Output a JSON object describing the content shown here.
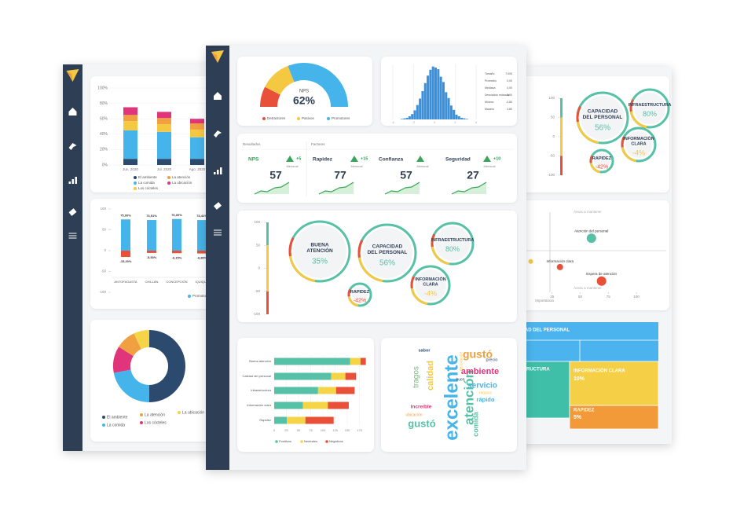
{
  "left_dashboard": {
    "stacked_chart": {
      "type": "bar",
      "categories": [
        "Jun. 2020",
        "Jul. 2020",
        "Ago. 2020"
      ],
      "series": [
        {
          "name": "El ambiente",
          "color": "#2c4a6e",
          "values": [
            8,
            8,
            8
          ]
        },
        {
          "name": "La comida",
          "color": "#45b4ea",
          "values": [
            37,
            35,
            28
          ]
        },
        {
          "name": "Los cócteles",
          "color": "#f5c842",
          "values": [
            12,
            10,
            10
          ]
        },
        {
          "name": "La atención",
          "color": "#f0a040",
          "values": [
            8,
            8,
            8
          ]
        },
        {
          "name": "La ubicación",
          "color": "#e0357a",
          "values": [
            10,
            8,
            6
          ]
        }
      ],
      "ylim": [
        0,
        100
      ],
      "yticks": [
        {
          "value": 0,
          "label": "0%"
        },
        {
          "value": 20,
          "label": "20%"
        },
        {
          "value": 40,
          "label": "40%"
        },
        {
          "value": 60,
          "label": "60%"
        },
        {
          "value": 80,
          "label": "80%"
        },
        {
          "value": 100,
          "label": "100%"
        }
      ]
    },
    "diverging_chart": {
      "type": "bar",
      "categories": [
        "ANTOFAGASTA",
        "CHILLÁN",
        "CONCEPCIÓN",
        "IQUIQUE"
      ],
      "series": [
        {
          "name": "Promotores",
          "color": "#45b4ea",
          "values": [
            75,
            73.51,
            76,
            73.41
          ],
          "value_labels": [
            "75,00%",
            "73,51%",
            "76,00%",
            "73,41%"
          ]
        },
        {
          "color": "#e8503a",
          "values": [
            -15.2,
            -5.53,
            -6.15,
            -6.8
          ],
          "value_labels": [
            "-15,20%",
            "-5,53%",
            "-6,15%",
            "-6,80%"
          ]
        }
      ],
      "ylim": [
        -100,
        100
      ],
      "yticks": [
        100,
        50,
        0,
        -50,
        -100
      ]
    },
    "donut_chart": {
      "type": "pie",
      "categories": [
        "El ambiente",
        "La comida",
        "Los cócteles",
        "La atención",
        "La ubicación"
      ],
      "colors": [
        "#2c4a6e",
        "#45b4ea",
        "#e0357a",
        "#f0a040",
        "#f5d547"
      ],
      "values": [
        50,
        22,
        12,
        9,
        7
      ]
    }
  },
  "center_dashboard": {
    "nps_gauge": {
      "type": "gauge",
      "label": "NPS",
      "value_label": "62%",
      "categories": [
        "Detractores",
        "Pasivos",
        "Promotores"
      ],
      "colors": [
        "#e8503a",
        "#f5c842",
        "#45b4ea"
      ],
      "values": [
        15,
        23,
        62
      ]
    },
    "histogram": {
      "type": "histogram",
      "bins": [
        -4,
        -3.75,
        -3.5,
        -3.25,
        -3,
        -2.75,
        -2.5,
        -2.25,
        -2,
        -1.75,
        -1.5,
        -1.25,
        -1,
        -0.75,
        -0.5,
        -0.25,
        0,
        0.25,
        0.5,
        0.75,
        1,
        1.25,
        1.5,
        1.75,
        2,
        2.25,
        2.5,
        2.75,
        3,
        3.25,
        3.5,
        3.75,
        4
      ],
      "counts": [
        0,
        0,
        0,
        1,
        2,
        3,
        6,
        10,
        17,
        27,
        39,
        53,
        68,
        82,
        93,
        99,
        97,
        94,
        80,
        70,
        51,
        40,
        26,
        18,
        9,
        6,
        3,
        2,
        1,
        0,
        0,
        0
      ],
      "color": "#3d8fd8",
      "xlim": [
        -4,
        4
      ],
      "xticks": [
        -4,
        -2,
        0,
        2,
        4
      ],
      "ylim": [
        0,
        100
      ],
      "stats": [
        {
          "label": "Tamaño",
          "value": "7.000"
        },
        {
          "label": "Promedio",
          "value": "0,00"
        },
        {
          "label": "Mediana",
          "value": "0,00"
        },
        {
          "label": "Desviación estándar",
          "value": "1,00"
        },
        {
          "label": "Mínimo",
          "value": "-3,80"
        },
        {
          "label": "Máximo",
          "value": "3,80"
        }
      ]
    },
    "results": {
      "results_title": "Resultados",
      "factors_title": "Factores",
      "items": [
        {
          "name": "NPS",
          "delta": "+5",
          "period": "Mensual",
          "value": 57
        },
        {
          "name": "Rapidez",
          "delta": "+15",
          "period": "Mensual",
          "value": 77
        },
        {
          "name": "Confianza",
          "period": "Mensual",
          "value": 57
        },
        {
          "name": "Seguridad",
          "delta": "+10",
          "period": "Mensual",
          "value": 27
        }
      ]
    },
    "bubble_chart": {
      "ylim": [
        -100,
        100
      ],
      "yticks": [
        100,
        50,
        0,
        -50,
        -100
      ],
      "bubbles": [
        {
          "label": [
            "BUENA",
            "ATENCIÓN"
          ],
          "value_label": "35%",
          "color": "#56c1a6"
        },
        {
          "label": [
            "CAPACIDAD",
            "DEL PERSONAL"
          ],
          "value_label": "56%",
          "color": "#56c1a6"
        },
        {
          "label": [
            "INFRAESTRUCTURA"
          ],
          "value_label": "80%",
          "color": "#56c1a6"
        },
        {
          "label": [
            "INFORMACIÓN",
            "CLARA"
          ],
          "value_label": "-4%",
          "color": "#f5c842"
        },
        {
          "label": [
            "RAPIDEZ"
          ],
          "value_label": "-42%",
          "color": "#e8503a"
        }
      ]
    },
    "stacked_bar_chart": {
      "type": "bar",
      "orientation": "horizontal",
      "categories": [
        "Buena atención",
        "Calidad del personal",
        "Infraestructura",
        "Información clara",
        "Rapidez"
      ],
      "series": [
        {
          "name": "Positivos",
          "color": "#56c1a6",
          "values": [
            156,
            117,
            90,
            59,
            26
          ]
        },
        {
          "name": "Neutrales",
          "color": "#f5d547",
          "values": [
            21,
            29,
            37,
            51,
            38
          ]
        },
        {
          "name": "Negativos",
          "color": "#e8503a",
          "values": [
            11,
            22,
            38,
            43,
            58
          ]
        }
      ],
      "xlim": [
        0,
        195
      ],
      "xticks": [
        0,
        25,
        50,
        75,
        100,
        125,
        150,
        175
      ]
    },
    "word_cloud": [
      {
        "text": "excelente",
        "color": "#45b4ea"
      },
      {
        "text": "atención",
        "color": "#56c1a6"
      },
      {
        "text": "gustó",
        "color": "#f0a040"
      },
      {
        "text": "calidad",
        "color": "#f5c842"
      },
      {
        "text": "tragos",
        "color": "#6fbf73"
      },
      {
        "text": "ambiente",
        "color": "#e0357a"
      },
      {
        "text": "servicio",
        "color": "#45b4ea"
      },
      {
        "text": "rápido",
        "color": "#45b4ea"
      },
      {
        "text": "gustó",
        "color": "#56c1a6"
      },
      {
        "text": "increíble",
        "color": "#e0357a"
      },
      {
        "text": "comida",
        "color": "#56c1a6"
      },
      {
        "text": "sabor",
        "color": "#2c4a6e"
      },
      {
        "text": "precio",
        "color": "#2c4a6e"
      },
      {
        "text": "decoración",
        "color": "#f5c842"
      },
      {
        "text": "buen",
        "color": "#2c4a6e"
      },
      {
        "text": "ubicación",
        "color": "#f0a040"
      },
      {
        "text": "música",
        "color": "#f5c842"
      }
    ]
  },
  "right_dashboard": {
    "bubble_chart": {
      "ylim": [
        -100,
        100
      ],
      "yticks": [
        100,
        50,
        0,
        -50,
        -100
      ],
      "bubbles": [
        {
          "label": [
            "CAPACIDAD",
            "DEL PERSONAL"
          ],
          "value_label": "56%",
          "color": "#56c1a6"
        },
        {
          "label": [
            "INFRAESTRUCTURA"
          ],
          "value_label": "80%",
          "color": "#56c1a6"
        },
        {
          "label": [
            "INFORMACIÓN",
            "CLARA"
          ],
          "value_label": "-4%",
          "color": "#f5c842"
        },
        {
          "label": [
            "RAPIDEZ"
          ],
          "value_label": "-42%",
          "color": "#e8503a"
        }
      ]
    },
    "scatter_chart": {
      "type": "scatter",
      "top_label": "Áreas a mantener",
      "bottom_label": "Áreas a mantener",
      "x_label": "Importancia",
      "xlim": [
        0,
        100
      ],
      "xticks": [
        25,
        50,
        75,
        100
      ],
      "ylim": [
        -100,
        100
      ],
      "points": [
        {
          "label": "Atención del personal",
          "x": 60,
          "y": 31,
          "color": "#56c1a6"
        },
        {
          "label": "Higiene",
          "x": 6,
          "y": -27,
          "color": "#f5c842"
        },
        {
          "label": "Información clara",
          "x": 32,
          "y": -41,
          "color": "#e8503a"
        },
        {
          "label": "Espera de atención",
          "x": 69,
          "y": -76,
          "color": "#e8503a"
        }
      ]
    },
    "treemap": [
      {
        "label": "CAPACIDAD DEL PERSONAL",
        "color": "#4bb4ee"
      },
      {
        "label": "INFRAESTRUCTURA",
        "color": "#3fbfa8"
      },
      {
        "label": "INFORMACIÓN CLARA",
        "value_label": "10%",
        "color": "#f5cf45"
      },
      {
        "label": "RAPIDEZ",
        "value_label": "5%",
        "color": "#f29a3a"
      }
    ]
  }
}
